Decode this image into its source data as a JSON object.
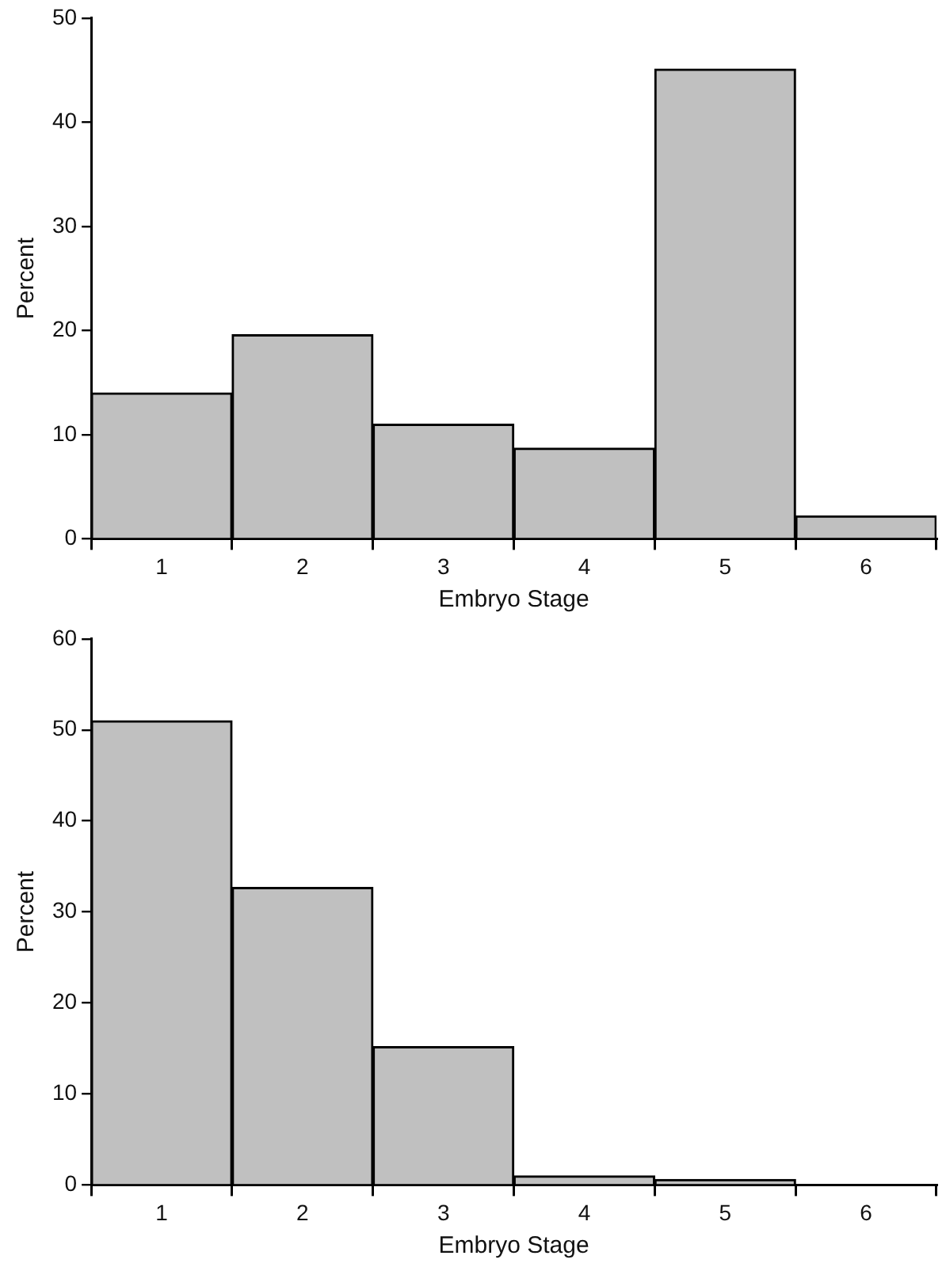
{
  "chart_data": [
    {
      "type": "bar",
      "xlabel": "Embryo Stage",
      "ylabel": "Percent",
      "categories": [
        "1",
        "2",
        "3",
        "4",
        "5",
        "6"
      ],
      "values": [
        14.0,
        19.6,
        11.0,
        8.7,
        45.1,
        2.2
      ],
      "color": "#c0c0c0",
      "ylim": [
        0,
        50
      ],
      "yticks": [
        0,
        10,
        20,
        30,
        40,
        50
      ],
      "grid": false,
      "legend": false
    },
    {
      "type": "bar",
      "xlabel": "Embryo Stage",
      "ylabel": "Percent",
      "categories": [
        "1",
        "2",
        "3",
        "4",
        "5",
        "6"
      ],
      "values": [
        51.0,
        32.7,
        15.2,
        1.0,
        0.6,
        0
      ],
      "color": "#c0c0c0",
      "ylim": [
        0,
        60
      ],
      "yticks": [
        0,
        10,
        20,
        30,
        40,
        50,
        60
      ],
      "grid": false,
      "legend": false
    }
  ]
}
